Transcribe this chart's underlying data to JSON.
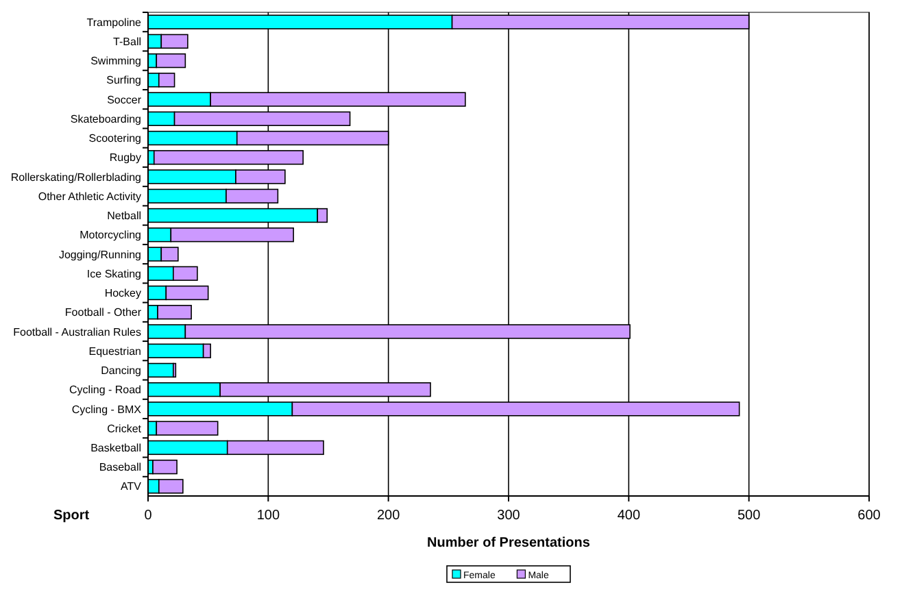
{
  "chart_data": {
    "type": "bar",
    "orientation": "horizontal",
    "stacked": true,
    "xlabel": "Number of Presentations",
    "ylabel": "Sport",
    "categories": [
      "Trampoline",
      "T-Ball",
      "Swimming",
      "Surfing",
      "Soccer",
      "Skateboarding",
      "Scootering",
      "Rugby",
      "Rollerskating/Rollerblading",
      "Other Athletic Activity",
      "Netball",
      "Motorcycling",
      "Jogging/Running",
      "Ice Skating",
      "Hockey",
      "Football - Other",
      "Football - Australian Rules",
      "Equestrian",
      "Dancing",
      "Cycling - Road",
      "Cycling - BMX",
      "Cricket",
      "Basketball",
      "Baseball",
      "ATV"
    ],
    "series": [
      {
        "name": "Female",
        "color": "#00ffff",
        "values": [
          253,
          11,
          7,
          9,
          52,
          22,
          74,
          5,
          73,
          65,
          141,
          19,
          11,
          21,
          15,
          8,
          31,
          46,
          21,
          60,
          120,
          7,
          66,
          4,
          9
        ]
      },
      {
        "name": "Male",
        "color": "#cc99ff",
        "values": [
          247,
          22,
          24,
          13,
          212,
          146,
          126,
          124,
          41,
          43,
          8,
          102,
          14,
          20,
          35,
          28,
          370,
          6,
          2,
          175,
          372,
          51,
          80,
          20,
          20
        ]
      }
    ],
    "xlim": [
      0,
      600
    ],
    "xticks": [
      0,
      100,
      200,
      300,
      400,
      500,
      600
    ],
    "grid": "x",
    "legend": "bottom"
  }
}
